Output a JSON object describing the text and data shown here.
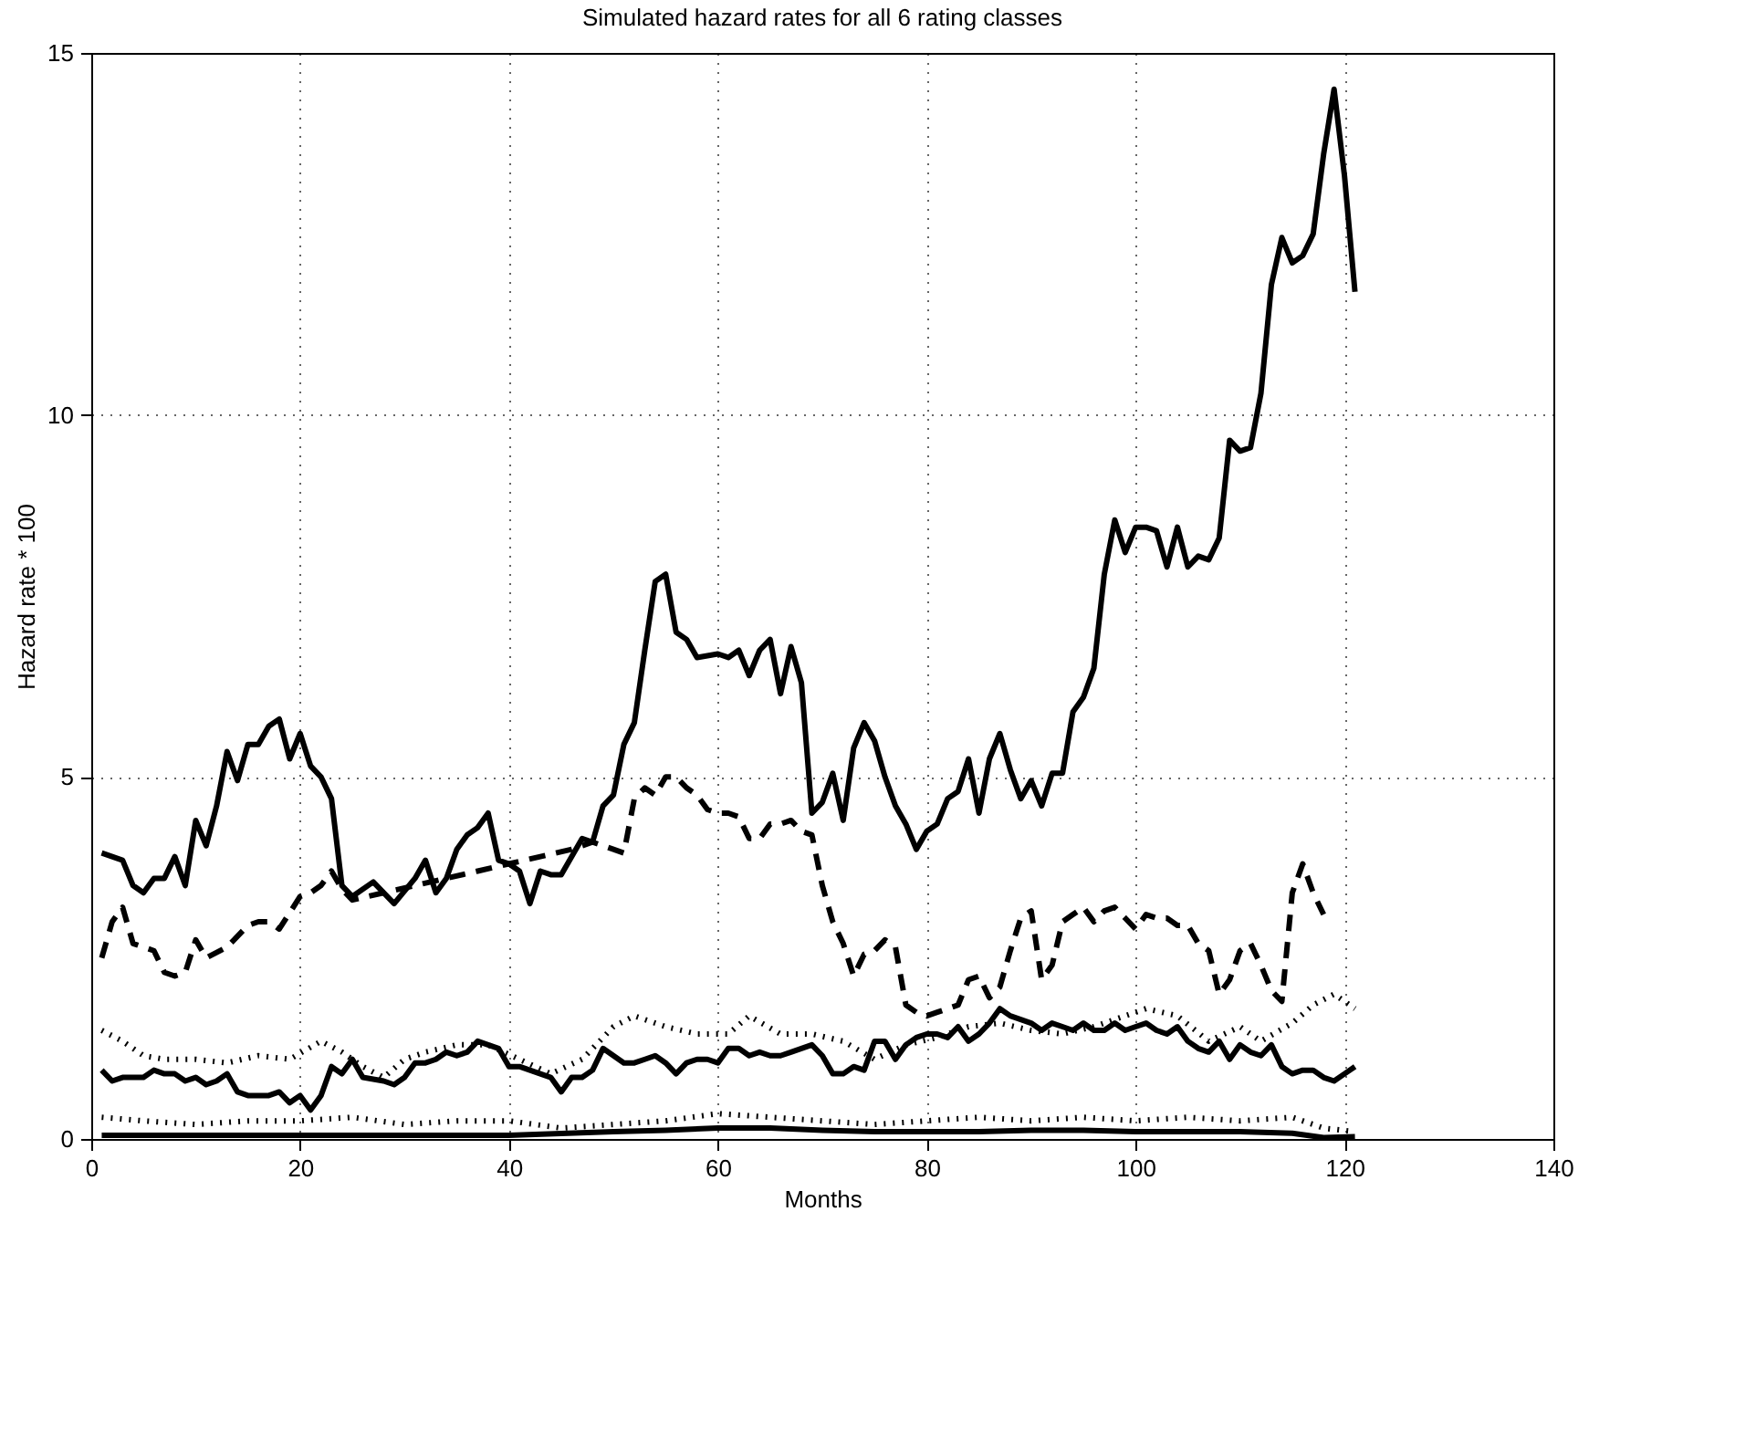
{
  "chart_data": {
    "type": "line",
    "title": "Simulated hazard rates for all 6 rating classes",
    "xlabel": "Months",
    "ylabel": "Hazard rate * 100",
    "xlim": [
      0,
      140
    ],
    "xticks": [
      0,
      20,
      40,
      60,
      80,
      100,
      120,
      140
    ],
    "ylim": [
      0,
      15
    ],
    "yticks": [
      0,
      5,
      10,
      15
    ],
    "grid": true,
    "series": [
      {
        "color": "#000000",
        "line_style": "solid",
        "x": [
          1,
          3,
          4,
          5,
          6,
          7,
          8,
          9,
          10,
          11,
          12,
          13,
          14,
          15,
          16,
          17,
          18,
          19,
          20,
          21,
          22,
          23,
          24,
          25,
          27,
          29,
          31,
          32,
          33,
          34,
          35,
          36,
          37,
          38,
          39,
          40,
          41,
          42,
          43,
          44,
          45,
          47,
          48,
          49,
          50,
          51,
          52,
          53,
          54,
          55,
          56,
          57,
          58,
          60,
          61,
          62,
          63,
          64,
          65,
          66,
          67,
          68,
          69,
          70,
          71,
          72,
          73,
          74,
          75,
          76,
          77,
          78,
          79,
          80,
          81,
          82,
          83,
          84,
          85,
          86,
          87,
          88,
          89,
          90,
          91,
          92,
          93,
          94,
          95,
          96,
          97,
          98,
          99,
          100,
          101,
          102,
          103,
          104,
          105,
          106,
          107,
          108,
          109,
          110,
          111,
          112,
          113,
          114,
          115,
          116,
          117,
          118,
          119,
          120,
          121
        ],
        "values": [
          3.95,
          3.85,
          3.5,
          3.4,
          3.6,
          3.6,
          3.9,
          3.5,
          4.4,
          4.05,
          4.6,
          5.35,
          4.95,
          5.45,
          5.45,
          5.7,
          5.8,
          5.25,
          5.6,
          5.15,
          5.0,
          4.7,
          3.5,
          3.35,
          3.55,
          3.25,
          3.6,
          3.85,
          3.4,
          3.6,
          4.0,
          4.2,
          4.3,
          4.5,
          3.85,
          3.8,
          3.7,
          3.25,
          3.7,
          3.65,
          3.65,
          4.15,
          4.1,
          4.6,
          4.75,
          5.45,
          5.75,
          6.75,
          7.7,
          7.8,
          7.0,
          6.9,
          6.65,
          6.7,
          6.65,
          6.75,
          6.4,
          6.75,
          6.9,
          6.15,
          6.8,
          6.3,
          4.5,
          4.65,
          5.05,
          4.4,
          5.4,
          5.75,
          5.5,
          5.0,
          4.6,
          4.35,
          4.0,
          4.25,
          4.35,
          4.7,
          4.8,
          5.25,
          4.5,
          5.25,
          5.6,
          5.1,
          4.7,
          4.95,
          4.6,
          5.05,
          5.05,
          5.9,
          6.1,
          6.5,
          7.8,
          8.55,
          8.1,
          8.45,
          8.45,
          8.4,
          7.9,
          8.45,
          7.9,
          8.05,
          8.0,
          8.3,
          9.65,
          9.5,
          9.55,
          10.3,
          11.8,
          12.45,
          12.1,
          12.2,
          12.5,
          13.6,
          14.5,
          13.3,
          11.7
        ]
      },
      {
        "color": "#000000",
        "line_style": "dashed",
        "x": [
          1,
          2,
          3,
          4,
          6,
          7,
          8,
          9,
          10,
          11,
          13,
          15,
          16,
          17,
          18,
          20,
          21,
          22,
          23,
          24,
          25,
          28,
          31,
          34,
          37,
          40,
          43,
          46,
          48,
          50,
          51,
          52,
          53,
          54,
          55,
          56,
          57,
          58,
          59,
          60,
          61,
          62,
          63,
          64,
          65,
          66,
          67,
          68,
          69,
          70,
          71,
          72,
          73,
          74,
          75,
          76,
          77,
          78,
          79,
          80,
          81,
          82,
          83,
          84,
          85,
          86,
          87,
          88,
          89,
          90,
          91,
          92,
          93,
          94,
          95,
          96,
          97,
          98,
          99,
          100,
          101,
          102,
          103,
          104,
          105,
          106,
          107,
          108,
          109,
          110,
          111,
          112,
          113,
          114,
          115,
          116,
          117,
          118
        ],
        "values": [
          2.5,
          3.0,
          3.2,
          2.7,
          2.6,
          2.3,
          2.25,
          2.3,
          2.75,
          2.5,
          2.65,
          2.95,
          3.0,
          3.0,
          2.9,
          3.35,
          3.4,
          3.5,
          3.7,
          3.45,
          3.3,
          3.4,
          3.5,
          3.6,
          3.7,
          3.8,
          3.9,
          4.0,
          4.1,
          4.0,
          3.95,
          4.7,
          4.85,
          4.75,
          5.0,
          5.0,
          4.85,
          4.75,
          4.55,
          4.5,
          4.5,
          4.45,
          4.15,
          4.15,
          4.35,
          4.35,
          4.4,
          4.25,
          4.2,
          3.5,
          3.0,
          2.7,
          2.25,
          2.55,
          2.6,
          2.75,
          2.65,
          1.85,
          1.75,
          1.7,
          1.75,
          1.8,
          1.85,
          2.2,
          2.25,
          1.95,
          2.1,
          2.6,
          3.05,
          3.15,
          2.2,
          2.4,
          3.0,
          3.1,
          3.2,
          3.0,
          3.15,
          3.2,
          3.05,
          2.9,
          3.1,
          3.05,
          3.05,
          2.95,
          2.95,
          2.7,
          2.6,
          2.0,
          2.2,
          2.6,
          2.7,
          2.4,
          2.05,
          1.9,
          3.4,
          3.8,
          3.4,
          3.1
        ]
      },
      {
        "color": "#000000",
        "line_style": "dotted",
        "x": [
          1,
          3,
          5,
          7,
          10,
          13,
          16,
          19,
          22,
          24,
          26,
          28,
          30,
          32,
          35,
          38,
          41,
          44,
          47,
          50,
          52,
          55,
          58,
          61,
          63,
          66,
          69,
          72,
          75,
          78,
          81,
          84,
          87,
          90,
          93,
          96,
          99,
          101,
          104,
          107,
          110,
          112,
          115,
          117,
          119,
          121
        ],
        "values": [
          1.5,
          1.35,
          1.15,
          1.1,
          1.1,
          1.05,
          1.15,
          1.1,
          1.35,
          1.2,
          1.0,
          0.85,
          1.1,
          1.2,
          1.3,
          1.3,
          1.1,
          0.9,
          1.1,
          1.55,
          1.7,
          1.55,
          1.45,
          1.45,
          1.7,
          1.45,
          1.45,
          1.35,
          1.1,
          1.3,
          1.4,
          1.55,
          1.6,
          1.5,
          1.45,
          1.55,
          1.7,
          1.8,
          1.7,
          1.35,
          1.55,
          1.35,
          1.6,
          1.85,
          2.0,
          1.8
        ]
      },
      {
        "color": "#000000",
        "line_style": "solid",
        "x": [
          1,
          2,
          3,
          5,
          6,
          7,
          8,
          9,
          10,
          11,
          12,
          13,
          14,
          15,
          17,
          18,
          19,
          20,
          21,
          22,
          23,
          24,
          25,
          26,
          28,
          29,
          30,
          31,
          32,
          33,
          34,
          35,
          36,
          37,
          38,
          39,
          40,
          41,
          43,
          44,
          45,
          46,
          47,
          48,
          49,
          50,
          51,
          52,
          53,
          54,
          55,
          56,
          57,
          58,
          59,
          60,
          61,
          62,
          63,
          64,
          65,
          66,
          67,
          68,
          69,
          70,
          71,
          72,
          73,
          74,
          75,
          76,
          77,
          78,
          79,
          80,
          81,
          82,
          83,
          84,
          85,
          86,
          87,
          88,
          89,
          90,
          91,
          92,
          93,
          94,
          95,
          96,
          97,
          98,
          99,
          100,
          101,
          102,
          103,
          104,
          105,
          106,
          107,
          108,
          109,
          110,
          111,
          112,
          113,
          114,
          115,
          116,
          117,
          118,
          119,
          120,
          121
        ],
        "values": [
          0.95,
          0.8,
          0.85,
          0.85,
          0.95,
          0.9,
          0.9,
          0.8,
          0.85,
          0.75,
          0.8,
          0.9,
          0.65,
          0.6,
          0.6,
          0.65,
          0.5,
          0.6,
          0.4,
          0.6,
          1.0,
          0.9,
          1.1,
          0.85,
          0.8,
          0.75,
          0.85,
          1.05,
          1.05,
          1.1,
          1.2,
          1.15,
          1.2,
          1.35,
          1.3,
          1.25,
          1.0,
          1.0,
          0.9,
          0.85,
          0.65,
          0.85,
          0.85,
          0.95,
          1.25,
          1.15,
          1.05,
          1.05,
          1.1,
          1.15,
          1.05,
          0.9,
          1.05,
          1.1,
          1.1,
          1.05,
          1.25,
          1.25,
          1.15,
          1.2,
          1.15,
          1.15,
          1.2,
          1.25,
          1.3,
          1.15,
          0.9,
          0.9,
          1.0,
          0.95,
          1.35,
          1.35,
          1.1,
          1.3,
          1.4,
          1.45,
          1.45,
          1.4,
          1.55,
          1.35,
          1.45,
          1.6,
          1.8,
          1.7,
          1.65,
          1.6,
          1.5,
          1.6,
          1.55,
          1.5,
          1.6,
          1.5,
          1.5,
          1.6,
          1.5,
          1.55,
          1.6,
          1.5,
          1.45,
          1.55,
          1.35,
          1.25,
          1.2,
          1.35,
          1.1,
          1.3,
          1.2,
          1.15,
          1.3,
          1.0,
          0.9,
          0.95,
          0.95,
          0.85,
          0.8,
          0.9,
          1.0
        ]
      },
      {
        "color": "#000000",
        "line_style": "dotted",
        "x": [
          1,
          5,
          10,
          15,
          20,
          25,
          30,
          35,
          40,
          45,
          50,
          55,
          60,
          65,
          70,
          75,
          80,
          85,
          90,
          95,
          100,
          105,
          110,
          115,
          118,
          121
        ],
        "values": [
          0.3,
          0.25,
          0.2,
          0.25,
          0.25,
          0.3,
          0.2,
          0.25,
          0.25,
          0.15,
          0.2,
          0.25,
          0.35,
          0.3,
          0.25,
          0.2,
          0.25,
          0.3,
          0.25,
          0.3,
          0.25,
          0.3,
          0.25,
          0.3,
          0.15,
          0.1
        ]
      },
      {
        "color": "#000000",
        "line_style": "solid",
        "x": [
          1,
          10,
          20,
          30,
          40,
          50,
          55,
          60,
          65,
          70,
          75,
          80,
          85,
          90,
          95,
          100,
          105,
          110,
          115,
          118,
          121
        ],
        "values": [
          0.05,
          0.05,
          0.05,
          0.05,
          0.05,
          0.1,
          0.12,
          0.15,
          0.15,
          0.12,
          0.1,
          0.1,
          0.1,
          0.12,
          0.12,
          0.1,
          0.1,
          0.1,
          0.08,
          0.02,
          0.03
        ]
      }
    ]
  }
}
